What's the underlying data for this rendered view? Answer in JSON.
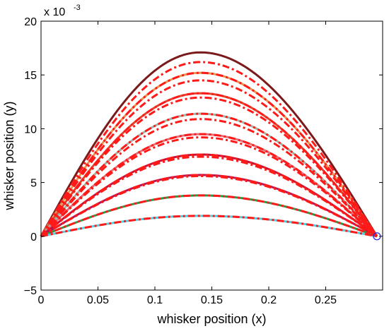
{
  "chart_data": {
    "type": "line",
    "title": "",
    "xlabel": "whisker position (x)",
    "ylabel": "whisker position (y)",
    "xlim": [
      0,
      0.3
    ],
    "ylim": [
      -5,
      20
    ],
    "y_scale_label": "x 10",
    "y_scale_exponent": "-3",
    "xticks": [
      0,
      0.05,
      0.1,
      0.15,
      0.2,
      0.25
    ],
    "xtick_labels": [
      "0",
      "0.05",
      "0.1",
      "0.15",
      "0.2",
      "0.25"
    ],
    "yticks": [
      -5,
      0,
      5,
      10,
      15,
      20
    ],
    "ytick_labels": [
      "−5",
      "0",
      "5",
      "10",
      "15",
      "20"
    ],
    "grid": false,
    "legend": "none",
    "x_end": 0.295,
    "x_peak": 0.14,
    "solid_series": [
      {
        "peak": 17.1,
        "color": "#7b1a1a"
      },
      {
        "peak": 15.2,
        "color": "#e8964f"
      },
      {
        "peak": 13.3,
        "color": "#e0452a"
      },
      {
        "peak": 11.4,
        "color": "#9fb5a6"
      },
      {
        "peak": 9.5,
        "color": "#e0707a"
      },
      {
        "peak": 7.6,
        "color": "#c2143c"
      },
      {
        "peak": 5.7,
        "color": "#b4165a"
      },
      {
        "peak": 3.8,
        "color": "#2a9a4a"
      },
      {
        "peak": 1.9,
        "color": "#4fd0e0"
      }
    ],
    "dashed_series": [
      {
        "peak": 16.2
      },
      {
        "peak": 15.2
      },
      {
        "peak": 14.5
      },
      {
        "peak": 13.3
      },
      {
        "peak": 12.9
      },
      {
        "peak": 11.4
      },
      {
        "peak": 10.9
      },
      {
        "peak": 9.5
      },
      {
        "peak": 9.2
      },
      {
        "peak": 7.6
      },
      {
        "peak": 7.4
      },
      {
        "peak": 5.7
      },
      {
        "peak": 5.6
      },
      {
        "peak": 3.8
      },
      {
        "peak": 1.9
      }
    ],
    "dashed_color": "#ff1a1a",
    "marker": {
      "x": 0.295,
      "y": 0,
      "shape": "open-circle",
      "color": "#2222dd"
    }
  }
}
